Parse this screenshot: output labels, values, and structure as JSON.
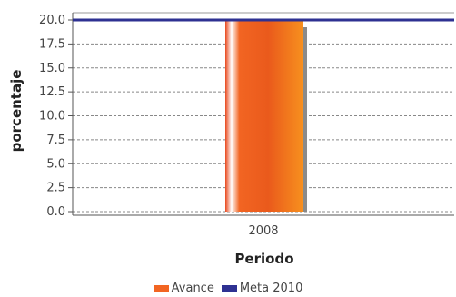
{
  "chart_data": {
    "type": "bar",
    "categories": [
      "2008"
    ],
    "series": [
      {
        "name": "Avance",
        "values": [
          20.0
        ],
        "color": "#f26522"
      }
    ],
    "reference_lines": [
      {
        "name": "Meta 2010",
        "value": 20.0,
        "color": "#2e3192"
      }
    ],
    "xlabel": "Periodo",
    "ylabel": "porcentaje",
    "ylim": [
      0,
      20
    ],
    "yticks": [
      "0.0",
      "2.5",
      "5.0",
      "7.5",
      "10.0",
      "12.5",
      "15.0",
      "17.5",
      "20.0"
    ],
    "grid": true,
    "legend_position": "bottom"
  }
}
